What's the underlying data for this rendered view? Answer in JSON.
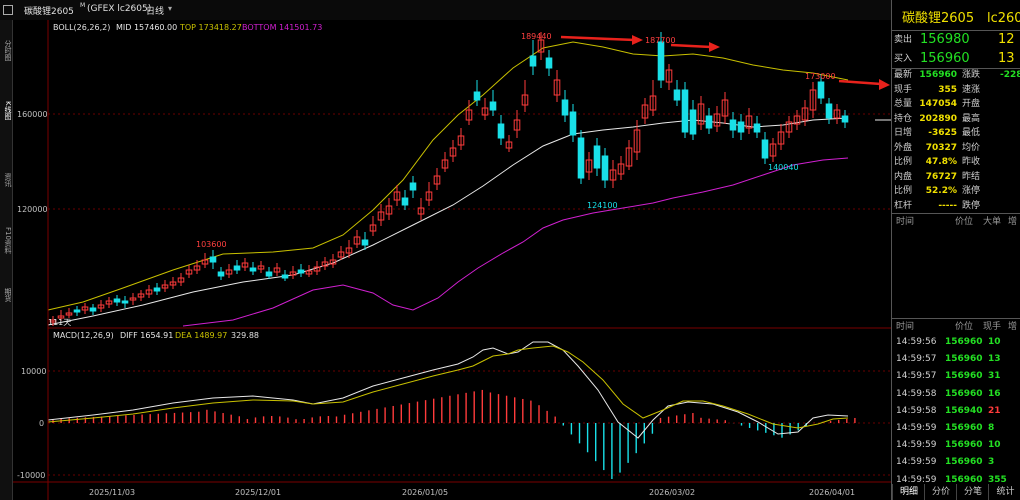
{
  "window": {
    "title": "碳酸锂2605",
    "title_sup": "M",
    "exchange_code": "(GFEX lc2605)",
    "period": "日线"
  },
  "left_strip": {
    "tabs": [
      "分时图",
      "K线图",
      "资讯",
      "F10资料",
      "期货"
    ]
  },
  "boll": {
    "label": "BOLL(26,26,2)",
    "mid": "MID 157460.00",
    "top": "TOP 173418.27",
    "bottom": "BOTTOM 141501.73"
  },
  "macd": {
    "label": "MACD(12,26,9)",
    "diff": "DIFF 1654.91",
    "dea": "DEA 1489.97",
    "macd": "329.88"
  },
  "price_axis": [
    "160000",
    "120000"
  ],
  "macd_axis": [
    "10000",
    "0",
    "-10000"
  ],
  "date_axis": [
    "2025/11/03",
    "2025/12/01",
    "2026/01/05",
    "2026/03/02",
    "2026/04/01"
  ],
  "annotations": {
    "h1": "189440",
    "h2": "187700",
    "h3": "173000",
    "l1": "124100",
    "l2": "140040",
    "l3": "103600",
    "days": "111天"
  },
  "colors": {
    "up": "#ff3b3b",
    "down": "#19e0e8",
    "mid": "#e8e8e8",
    "upper": "#c8c000",
    "lower": "#d020d0",
    "arrow": "#e8221c"
  },
  "quote": {
    "name": "碳酸锂2605",
    "code": "lc260",
    "sell_label": "卖出",
    "sell_price": "156980",
    "sell_vol": "12",
    "buy_label": "买入",
    "buy_price": "156960",
    "buy_vol": "13",
    "rows": [
      {
        "l": "最新",
        "v": "156960",
        "c": "green",
        "r": "涨跌",
        "rv": "-228",
        "rc": "green"
      },
      {
        "l": "现手",
        "v": "355",
        "c": "yellow",
        "r": "速涨",
        "rv": "",
        "rc": ""
      },
      {
        "l": "总量",
        "v": "147054",
        "c": "yellow",
        "r": "开盘",
        "rv": "",
        "rc": ""
      },
      {
        "l": "持仓",
        "v": "202890",
        "c": "yellow",
        "r": "最高",
        "rv": "",
        "rc": ""
      },
      {
        "l": "日增",
        "v": "-3625",
        "c": "yellow",
        "r": "最低",
        "rv": "",
        "rc": ""
      },
      {
        "l": "外盘",
        "v": "70327",
        "c": "yellow",
        "r": "均价",
        "rv": "",
        "rc": ""
      },
      {
        "l": "比例",
        "v": "47.8%",
        "c": "yellow",
        "r": "昨收",
        "rv": "",
        "rc": ""
      },
      {
        "l": "内盘",
        "v": "76727",
        "c": "yellow",
        "r": "昨结",
        "rv": "",
        "rc": ""
      },
      {
        "l": "比例",
        "v": "52.2%",
        "c": "yellow",
        "r": "涨停",
        "rv": "",
        "rc": ""
      },
      {
        "l": "杠杆",
        "v": "-----",
        "c": "yellow",
        "r": "跌停",
        "rv": "",
        "rc": ""
      }
    ],
    "sec1_headers": [
      "时间",
      "价位",
      "大单",
      "增"
    ],
    "sec2_headers": [
      "时间",
      "价位",
      "现手",
      "增"
    ],
    "ticks": [
      {
        "t": "14:59:56",
        "p": "156960",
        "v": "10",
        "vc": "green"
      },
      {
        "t": "14:59:57",
        "p": "156960",
        "v": "13",
        "vc": "green"
      },
      {
        "t": "14:59:57",
        "p": "156960",
        "v": "31",
        "vc": "green"
      },
      {
        "t": "14:59:58",
        "p": "156960",
        "v": "16",
        "vc": "green"
      },
      {
        "t": "14:59:58",
        "p": "156940",
        "v": "21",
        "vc": "red"
      },
      {
        "t": "14:59:59",
        "p": "156960",
        "v": "8",
        "vc": "green"
      },
      {
        "t": "14:59:59",
        "p": "156960",
        "v": "10",
        "vc": "green"
      },
      {
        "t": "14:59:59",
        "p": "156960",
        "v": "3",
        "vc": "green"
      },
      {
        "t": "14:59:59",
        "p": "156960",
        "v": "355",
        "vc": "green"
      }
    ],
    "bottom_tabs": [
      "明细",
      "分价",
      "分笔",
      "统计"
    ]
  }
}
